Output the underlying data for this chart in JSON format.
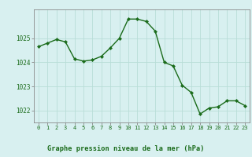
{
  "x": [
    0,
    1,
    2,
    3,
    4,
    5,
    6,
    7,
    8,
    9,
    10,
    11,
    12,
    13,
    14,
    15,
    16,
    17,
    18,
    19,
    20,
    21,
    22,
    23
  ],
  "y": [
    1024.65,
    1024.8,
    1024.95,
    1024.85,
    1024.15,
    1024.05,
    1024.1,
    1024.25,
    1024.6,
    1025.0,
    1025.8,
    1025.8,
    1025.7,
    1025.3,
    1024.0,
    1023.85,
    1023.05,
    1022.75,
    1021.85,
    1022.1,
    1022.15,
    1022.4,
    1022.4,
    1022.2
  ],
  "ylim": [
    1021.5,
    1026.2
  ],
  "yticks": [
    1022,
    1023,
    1024,
    1025
  ],
  "xticks": [
    0,
    1,
    2,
    3,
    4,
    5,
    6,
    7,
    8,
    9,
    10,
    11,
    12,
    13,
    14,
    15,
    16,
    17,
    18,
    19,
    20,
    21,
    22,
    23
  ],
  "line_color": "#1a6b1a",
  "marker_color": "#1a6b1a",
  "bg_color": "#d8f0f0",
  "grid_color": "#b8ddd8",
  "xlabel": "Graphe pression niveau de la mer (hPa)",
  "tick_color": "#1a6b1a",
  "bottom_bar_color": "#d8f0f0",
  "bottom_bar_text_color": "#1a6b1a",
  "spine_color": "#888888"
}
